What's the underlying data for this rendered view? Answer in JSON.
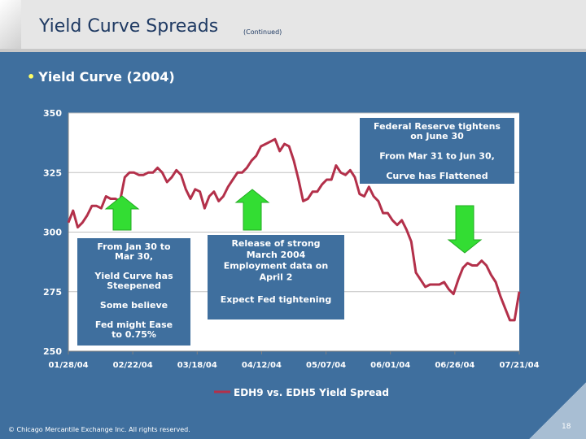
{
  "header": {
    "title": "Yield Curve Spreads",
    "subtitle": "(Continued)"
  },
  "bullet": "Yield Curve (2004)",
  "footer": {
    "copyright": "© Chicago Mercantile Exchange Inc. All rights reserved.",
    "page_number": "18"
  },
  "colors": {
    "plot_bg": "#ffffff",
    "line": "#b3304a",
    "axis_text": "#1f3a63",
    "note_box_bg": "#3f6f9e",
    "arrow": "#33dd33"
  },
  "chart_data": {
    "type": "line",
    "title": "",
    "xlabel": "",
    "ylabel": "",
    "ylim": [
      250,
      350
    ],
    "yticks": [
      250,
      275,
      300,
      325,
      350
    ],
    "date_range": [
      "01/28/04",
      "07/23/04"
    ],
    "xtick_labels": [
      "01/28/04",
      "02/22/04",
      "03/18/04",
      "04/12/04",
      "05/07/04",
      "06/01/04",
      "06/26/04",
      "07/21/04"
    ],
    "grid": true,
    "legend": "EDH9 vs. EDH5 Yield Spread",
    "series": [
      {
        "name": "EDH9 vs. EDH5 Yield Spread",
        "values": [
          304,
          309,
          302,
          304,
          307,
          311,
          311,
          310,
          315,
          314,
          314,
          313,
          323,
          325,
          325,
          324,
          324,
          325,
          325,
          327,
          325,
          321,
          323,
          326,
          324,
          318,
          314,
          318,
          317,
          310,
          315,
          317,
          313,
          315,
          319,
          322,
          325,
          325,
          327,
          330,
          332,
          336,
          337,
          338,
          339,
          334,
          337,
          336,
          330,
          322,
          313,
          314,
          317,
          317,
          320,
          322,
          322,
          328,
          325,
          324,
          326,
          323,
          316,
          315,
          319,
          315,
          313,
          308,
          308,
          305,
          303,
          305,
          301,
          296,
          283,
          280,
          277,
          278,
          278,
          278,
          279,
          276,
          274,
          280,
          285,
          287,
          286,
          286,
          288,
          286,
          282,
          279,
          273,
          268,
          263,
          263,
          275
        ]
      }
    ],
    "annotations": [
      {
        "id": "fed",
        "lines": [
          "Federal Reserve tightens",
          "on June 30",
          "",
          "From Mar 31 to Jun 30,",
          "",
          "Curve has Flattened"
        ]
      },
      {
        "id": "steepened",
        "lines": [
          "From Jan 30 to",
          "Mar 30,",
          "",
          "Yield Curve has",
          "Steepened",
          "",
          "Some believe",
          "",
          "Fed might Ease",
          "to 0.75%"
        ]
      },
      {
        "id": "release",
        "lines": [
          "Release of strong",
          "March 2004",
          "Employment data on",
          "April 2",
          "",
          "Expect Fed tightening"
        ]
      }
    ]
  }
}
